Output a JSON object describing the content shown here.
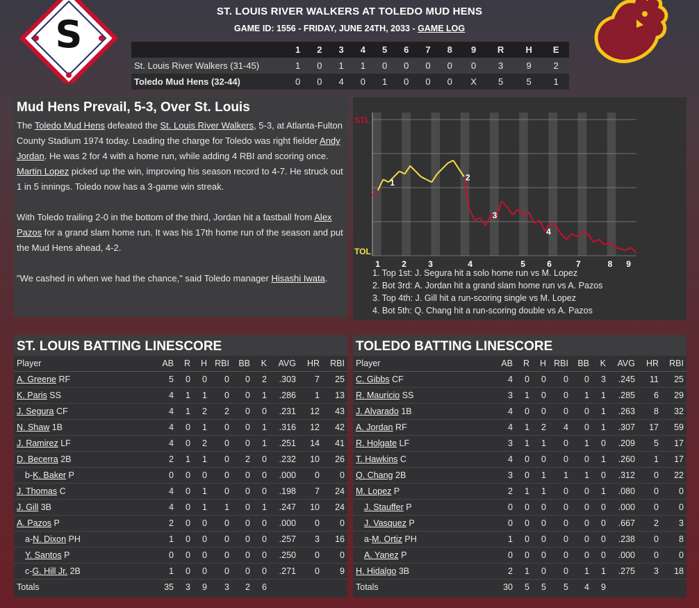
{
  "header": {
    "matchup": "ST. LOUIS RIVER WALKERS AT TOLEDO MUD HENS",
    "game_info_prefix": "GAME ID: 1556 - FRIDAY, JUNE 24TH, 2033 -",
    "game_log_link": "GAME LOG",
    "logo_left_letter": "S",
    "colors": {
      "stl_red": "#c8102e",
      "stl_navy": "#1d2a5c",
      "tol_maroon": "#8a1c2c",
      "tol_gold": "#f5c518"
    }
  },
  "linescore": {
    "innings": [
      "1",
      "2",
      "3",
      "4",
      "5",
      "6",
      "7",
      "8",
      "9",
      "R",
      "H",
      "E"
    ],
    "rows": [
      {
        "team": "St. Louis River Walkers (31-45)",
        "scores": [
          "1",
          "0",
          "1",
          "1",
          "0",
          "0",
          "0",
          "0",
          "0",
          "3",
          "9",
          "2"
        ]
      },
      {
        "team": "Toledo Mud Hens (32-44)",
        "scores": [
          "0",
          "0",
          "4",
          "0",
          "1",
          "0",
          "0",
          "0",
          "X",
          "5",
          "5",
          "1"
        ]
      }
    ]
  },
  "story": {
    "headline": "Mud Hens Prevail, 5-3, Over St. Louis",
    "p1": [
      {
        "t": "The "
      },
      {
        "t": "Toledo Mud Hens",
        "link": true
      },
      {
        "t": " defeated the "
      },
      {
        "t": "St. Louis River Walkers",
        "link": true
      },
      {
        "t": ", 5-3, at Atlanta-Fulton County Stadium 1974 today. Leading the charge for Toledo was right fielder "
      },
      {
        "t": "Andy Jordan",
        "link": true
      },
      {
        "t": ". He was 2 for 4 with a home run, while adding 4 RBI and scoring once. "
      },
      {
        "t": "Martin Lopez",
        "link": true
      },
      {
        "t": " picked up the win, improving his season record to 4-7. He struck out 1 in 5 innings. Toledo now has a 3-game win streak."
      }
    ],
    "p2": [
      {
        "t": "With Toledo trailing 2-0 in the bottom of the third, Jordan hit a fastball from "
      },
      {
        "t": "Alex Pazos",
        "link": true
      },
      {
        "t": " for a grand slam home run. It was his 17th home run of the season and put the Mud Hens ahead, 4-2."
      }
    ],
    "p3": [
      {
        "t": "\"We cashed in when we had the chance,\" said Toledo manager "
      },
      {
        "t": "Hisashi Iwata",
        "link": true
      },
      {
        "t": "."
      }
    ]
  },
  "chart_data": {
    "type": "line",
    "y_top_label": "STL",
    "y_bottom_label": "TOL",
    "x_tick_labels": [
      "1",
      "2",
      "3",
      "4",
      "5",
      "6",
      "7",
      "8",
      "9"
    ],
    "colors": {
      "stl": "#c8102e",
      "tol": "#f5e04a"
    },
    "series": [
      {
        "values": [
          0.44,
          0.48,
          0.56,
          0.54,
          0.58,
          0.62,
          0.6,
          0.66,
          0.62,
          0.58,
          0.56,
          0.54,
          0.6,
          0.64,
          0.68,
          0.7,
          0.64,
          0.58,
          0.34,
          0.26,
          0.28,
          0.22,
          0.3,
          0.28,
          0.4,
          0.36,
          0.3,
          0.34,
          0.3,
          0.32,
          0.24,
          0.26,
          0.18,
          0.24,
          0.22,
          0.16,
          0.12,
          0.16,
          0.14,
          0.18,
          0.16,
          0.1,
          0.12,
          0.08,
          0.1,
          0.06,
          0.05,
          0.04,
          0.06,
          0.02
        ]
      }
    ],
    "annotations": [
      {
        "label": "1",
        "text": "1. Top 1st: J. Segura hit a solo home run vs M. Lopez"
      },
      {
        "label": "2",
        "text": "2. Bot 3rd: A. Jordan hit a grand slam home run vs A. Pazos"
      },
      {
        "label": "3",
        "text": "3. Top 4th: J. Gill hit a run-scoring single vs M. Lopez"
      },
      {
        "label": "4",
        "text": "4. Bot 5th: Q. Chang hit a run-scoring double vs A. Pazos"
      }
    ]
  },
  "stl_box": {
    "title": "ST. LOUIS BATTING LINESCORE",
    "columns": [
      "Player",
      "AB",
      "R",
      "H",
      "RBI",
      "BB",
      "K",
      "AVG",
      "HR",
      "RBI"
    ],
    "rows": [
      {
        "prefix": "",
        "name": "A. Greene",
        "pos": "RF",
        "stats": [
          "5",
          "0",
          "0",
          "0",
          "0",
          "2",
          ".303",
          "7",
          "25"
        ]
      },
      {
        "prefix": "",
        "name": "K. Paris",
        "pos": "SS",
        "stats": [
          "4",
          "1",
          "1",
          "0",
          "0",
          "1",
          ".286",
          "1",
          "13"
        ]
      },
      {
        "prefix": "",
        "name": "J. Segura",
        "pos": "CF",
        "stats": [
          "4",
          "1",
          "2",
          "2",
          "0",
          "0",
          ".231",
          "12",
          "43"
        ]
      },
      {
        "prefix": "",
        "name": "N. Shaw",
        "pos": "1B",
        "stats": [
          "4",
          "0",
          "1",
          "0",
          "0",
          "1",
          ".316",
          "12",
          "42"
        ]
      },
      {
        "prefix": "",
        "name": "J. Ramirez",
        "pos": "LF",
        "stats": [
          "4",
          "0",
          "2",
          "0",
          "0",
          "1",
          ".251",
          "14",
          "41"
        ]
      },
      {
        "prefix": "",
        "name": "D. Becerra",
        "pos": "2B",
        "stats": [
          "2",
          "1",
          "1",
          "0",
          "2",
          "0",
          ".232",
          "10",
          "26"
        ]
      },
      {
        "prefix": "b-",
        "name": "K. Baker",
        "pos": "P",
        "sub": true,
        "stats": [
          "0",
          "0",
          "0",
          "0",
          "0",
          "0",
          ".000",
          "0",
          "0"
        ]
      },
      {
        "prefix": "",
        "name": "J. Thomas",
        "pos": "C",
        "stats": [
          "4",
          "0",
          "1",
          "0",
          "0",
          "0",
          ".198",
          "7",
          "24"
        ]
      },
      {
        "prefix": "",
        "name": "J. Gill",
        "pos": "3B",
        "stats": [
          "4",
          "0",
          "1",
          "1",
          "0",
          "1",
          ".247",
          "10",
          "24"
        ]
      },
      {
        "prefix": "",
        "name": "A. Pazos",
        "pos": "P",
        "stats": [
          "2",
          "0",
          "0",
          "0",
          "0",
          "0",
          ".000",
          "0",
          "0"
        ]
      },
      {
        "prefix": "a-",
        "name": "N. Dixon",
        "pos": "PH",
        "sub": true,
        "stats": [
          "1",
          "0",
          "0",
          "0",
          "0",
          "0",
          ".257",
          "3",
          "16"
        ]
      },
      {
        "prefix": "",
        "name": "Y. Santos",
        "pos": "P",
        "sub": true,
        "stats": [
          "0",
          "0",
          "0",
          "0",
          "0",
          "0",
          ".250",
          "0",
          "0"
        ]
      },
      {
        "prefix": "c-",
        "name": "G. Hill Jr.",
        "pos": "2B",
        "sub": true,
        "stats": [
          "1",
          "0",
          "0",
          "0",
          "0",
          "0",
          ".271",
          "0",
          "9"
        ]
      }
    ],
    "totals_label": "Totals",
    "totals": [
      "35",
      "3",
      "9",
      "3",
      "2",
      "6",
      "",
      "",
      ""
    ]
  },
  "tol_box": {
    "title": "TOLEDO BATTING LINESCORE",
    "columns": [
      "Player",
      "AB",
      "R",
      "H",
      "RBI",
      "BB",
      "K",
      "AVG",
      "HR",
      "RBI"
    ],
    "rows": [
      {
        "prefix": "",
        "name": "C. Gibbs",
        "pos": "CF",
        "stats": [
          "4",
          "0",
          "0",
          "0",
          "0",
          "3",
          ".245",
          "11",
          "25"
        ]
      },
      {
        "prefix": "",
        "name": "R. Mauricio",
        "pos": "SS",
        "stats": [
          "3",
          "1",
          "0",
          "0",
          "1",
          "1",
          ".285",
          "6",
          "29"
        ]
      },
      {
        "prefix": "",
        "name": "J. Alvarado",
        "pos": "1B",
        "stats": [
          "4",
          "0",
          "0",
          "0",
          "0",
          "1",
          ".263",
          "8",
          "32"
        ]
      },
      {
        "prefix": "",
        "name": "A. Jordan",
        "pos": "RF",
        "stats": [
          "4",
          "1",
          "2",
          "4",
          "0",
          "1",
          ".307",
          "17",
          "59"
        ]
      },
      {
        "prefix": "",
        "name": "R. Holgate",
        "pos": "LF",
        "stats": [
          "3",
          "1",
          "1",
          "0",
          "1",
          "0",
          ".209",
          "5",
          "17"
        ]
      },
      {
        "prefix": "",
        "name": "T. Hawkins",
        "pos": "C",
        "stats": [
          "4",
          "0",
          "0",
          "0",
          "0",
          "1",
          ".260",
          "1",
          "17"
        ]
      },
      {
        "prefix": "",
        "name": "Q. Chang",
        "pos": "2B",
        "stats": [
          "3",
          "0",
          "1",
          "1",
          "1",
          "0",
          ".312",
          "0",
          "22"
        ]
      },
      {
        "prefix": "",
        "name": "M. Lopez",
        "pos": "P",
        "stats": [
          "2",
          "1",
          "1",
          "0",
          "0",
          "1",
          ".080",
          "0",
          "0"
        ]
      },
      {
        "prefix": "",
        "name": "J. Stauffer",
        "pos": "P",
        "sub": true,
        "stats": [
          "0",
          "0",
          "0",
          "0",
          "0",
          "0",
          ".000",
          "0",
          "0"
        ]
      },
      {
        "prefix": "",
        "name": "J. Vasquez",
        "pos": "P",
        "sub": true,
        "stats": [
          "0",
          "0",
          "0",
          "0",
          "0",
          "0",
          ".667",
          "2",
          "3"
        ]
      },
      {
        "prefix": "a-",
        "name": "M. Ortiz",
        "pos": "PH",
        "sub": true,
        "stats": [
          "1",
          "0",
          "0",
          "0",
          "0",
          "0",
          ".238",
          "0",
          "8"
        ]
      },
      {
        "prefix": "",
        "name": "A. Yanez",
        "pos": "P",
        "sub": true,
        "stats": [
          "0",
          "0",
          "0",
          "0",
          "0",
          "0",
          ".000",
          "0",
          "0"
        ]
      },
      {
        "prefix": "",
        "name": "H. Hidalgo",
        "pos": "3B",
        "stats": [
          "2",
          "1",
          "0",
          "0",
          "1",
          "1",
          ".275",
          "3",
          "18"
        ]
      }
    ],
    "totals_label": "Totals",
    "totals": [
      "30",
      "5",
      "5",
      "5",
      "4",
      "9",
      "",
      "",
      ""
    ]
  }
}
